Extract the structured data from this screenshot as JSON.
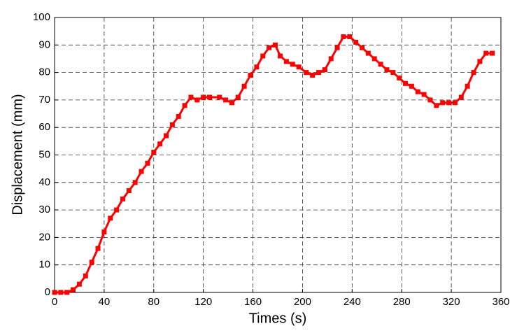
{
  "chart_data": {
    "type": "line",
    "x_label": "Times (s)",
    "y_label": "Displacement (mm)",
    "x": [
      0,
      5,
      10,
      15,
      20,
      25,
      30,
      35,
      40,
      45,
      50,
      55,
      60,
      65,
      70,
      75,
      80,
      85,
      90,
      95,
      100,
      105,
      110,
      115,
      120,
      125,
      133,
      138,
      143,
      148,
      153,
      158,
      163,
      168,
      173,
      178,
      182,
      187,
      192,
      197,
      203,
      208,
      213,
      218,
      223,
      228,
      233,
      238,
      243,
      248,
      253,
      258,
      263,
      268,
      273,
      278,
      283,
      288,
      293,
      298,
      303,
      308,
      313,
      318,
      323,
      328,
      333,
      338,
      343,
      348,
      353
    ],
    "series": [
      {
        "name": "Displacement",
        "color": "#ff0000",
        "values": [
          0,
          0,
          0,
          1,
          3,
          6,
          11,
          16,
          22,
          27,
          30,
          34,
          37,
          40,
          44,
          47,
          51,
          54,
          57,
          61,
          64,
          68,
          71,
          70,
          71,
          71,
          71,
          70,
          69,
          71,
          75,
          79,
          82,
          86,
          89,
          90,
          86,
          84,
          83,
          82,
          80,
          79,
          80,
          81,
          85,
          89,
          93,
          93,
          91,
          89,
          87,
          85,
          83,
          81,
          80,
          78,
          76,
          75,
          73,
          72,
          70,
          68,
          69,
          69,
          69,
          71,
          75,
          80,
          84,
          87,
          87
        ]
      }
    ],
    "xlim": [
      0,
      360
    ],
    "xticks": [
      0,
      40,
      80,
      120,
      160,
      200,
      240,
      280,
      320,
      360
    ],
    "ylim": [
      0,
      100
    ],
    "yticks": [
      0,
      10,
      20,
      30,
      40,
      50,
      60,
      70,
      80,
      90,
      100
    ],
    "grid": true
  }
}
